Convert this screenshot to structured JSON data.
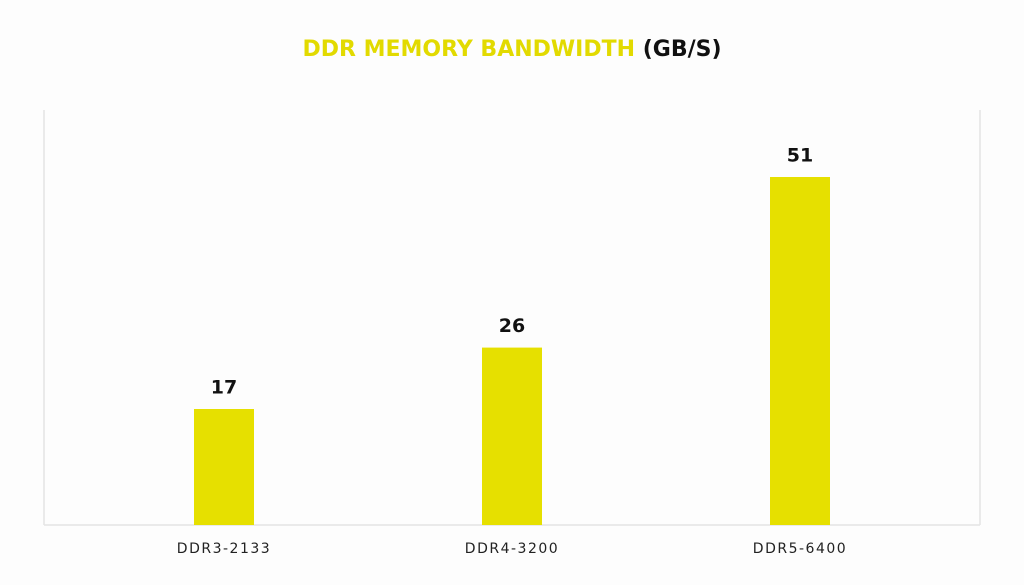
{
  "chart_data": {
    "type": "bar",
    "title": "DDR MEMORY BANDWIDTH",
    "title_unit": "(GB/S)",
    "categories": [
      "DDR3-2133",
      "DDR4-3200",
      "DDR5-6400"
    ],
    "values": [
      17,
      26,
      51
    ],
    "color": "#e6e000"
  }
}
